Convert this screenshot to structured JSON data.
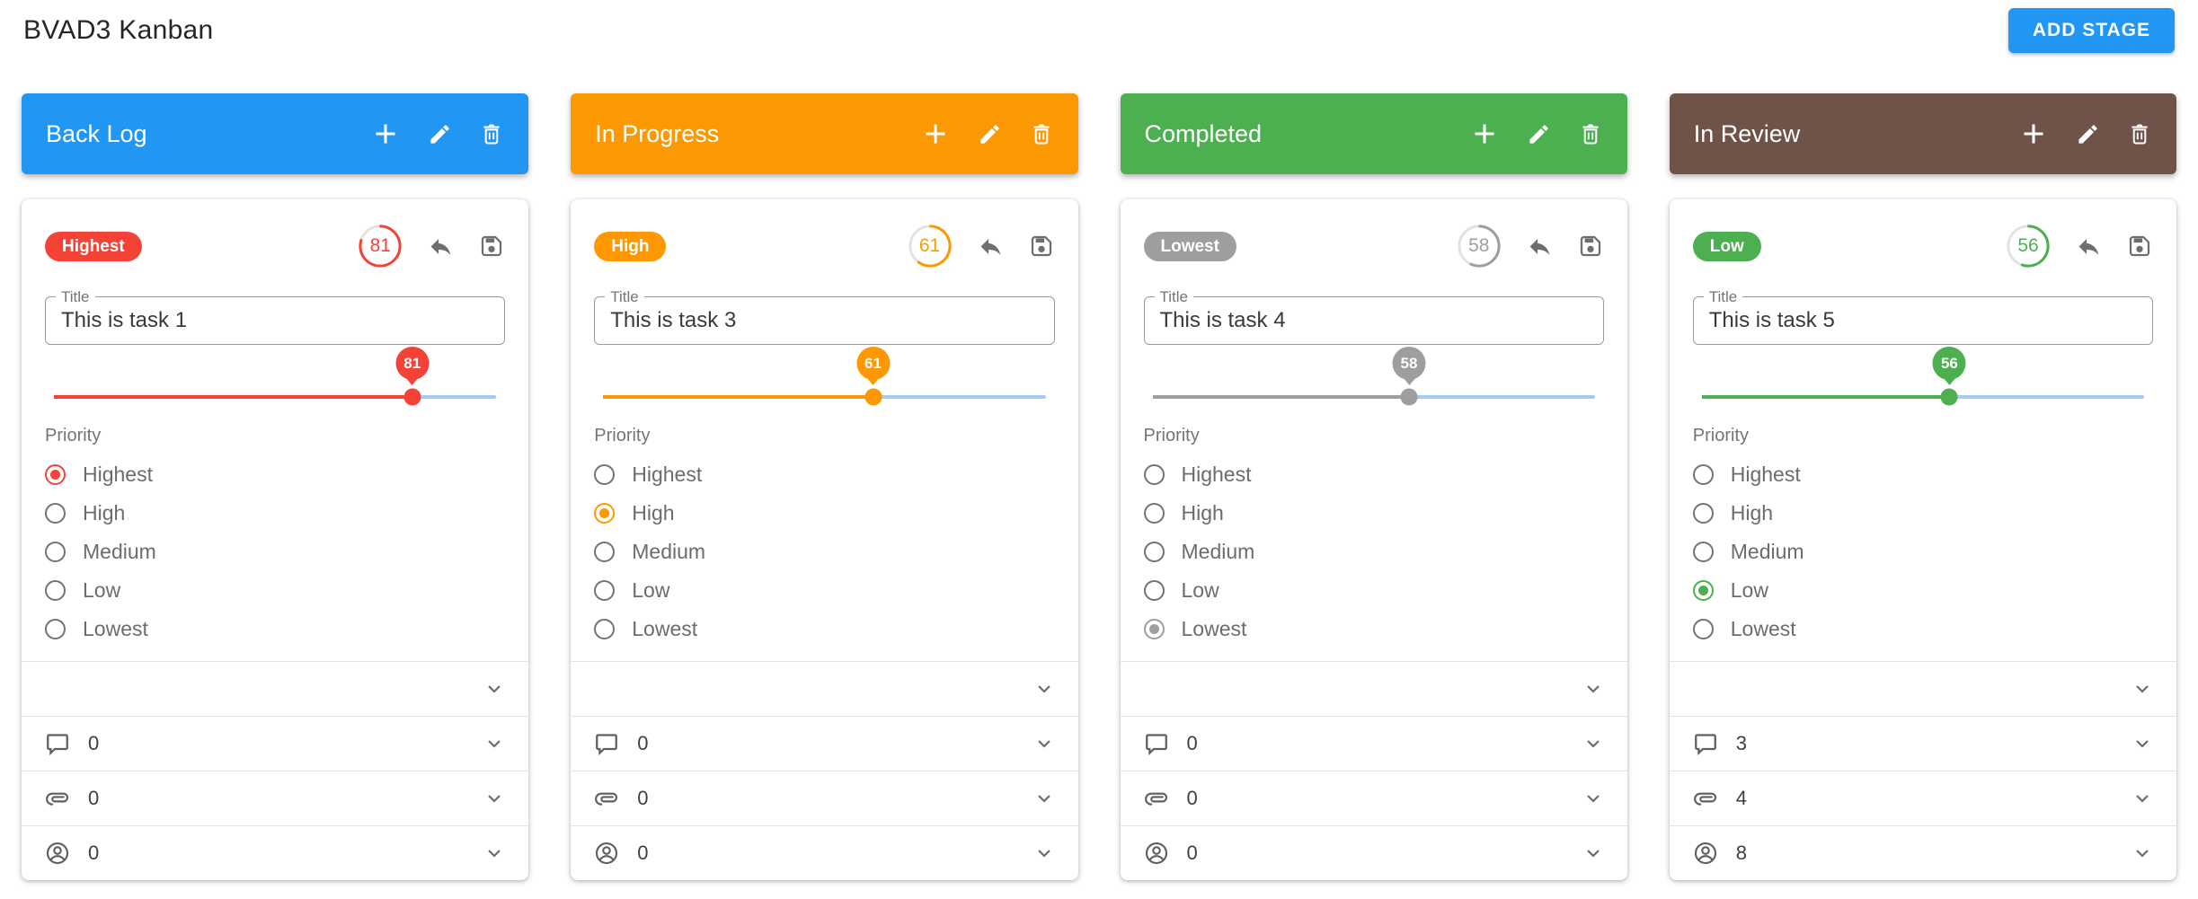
{
  "page_title": "BVAD3 Kanban",
  "toolbar": {
    "add_stage_label": "ADD STAGE",
    "add_stage_color": "#2196F3"
  },
  "field_labels": {
    "title": "Title"
  },
  "priority": {
    "label": "Priority",
    "options": [
      "Highest",
      "High",
      "Medium",
      "Low",
      "Lowest"
    ]
  },
  "colors": {
    "slider_rest_track": "#A5CBF5",
    "ring_track": "#E2E2E2"
  },
  "columns": [
    {
      "name": "Back Log",
      "header_color": "#2196F3",
      "card": {
        "badge": "Highest",
        "accent": "#F44336",
        "progress": 81,
        "title_value": "This is task 1",
        "slider_value": 81,
        "selected_priority_index": 0,
        "comments_count": "0",
        "attachments_count": "0",
        "assignees_count": "0"
      }
    },
    {
      "name": "In Progress",
      "header_color": "#FA9901",
      "card": {
        "badge": "High",
        "accent": "#FF9800",
        "progress": 61,
        "title_value": "This is task 3",
        "slider_value": 61,
        "selected_priority_index": 1,
        "comments_count": "0",
        "attachments_count": "0",
        "assignees_count": "0"
      }
    },
    {
      "name": "Completed",
      "header_color": "#4CAF50",
      "card": {
        "badge": "Lowest",
        "accent": "#9E9E9E",
        "progress": 58,
        "title_value": "This is task 4",
        "slider_value": 58,
        "selected_priority_index": 4,
        "comments_count": "0",
        "attachments_count": "0",
        "assignees_count": "0"
      }
    },
    {
      "name": "In Review",
      "header_color": "#6F5349",
      "card": {
        "badge": "Low",
        "accent": "#4CAF50",
        "progress": 56,
        "title_value": "This is task 5",
        "slider_value": 56,
        "selected_priority_index": 3,
        "comments_count": "3",
        "attachments_count": "4",
        "assignees_count": "8"
      }
    }
  ]
}
